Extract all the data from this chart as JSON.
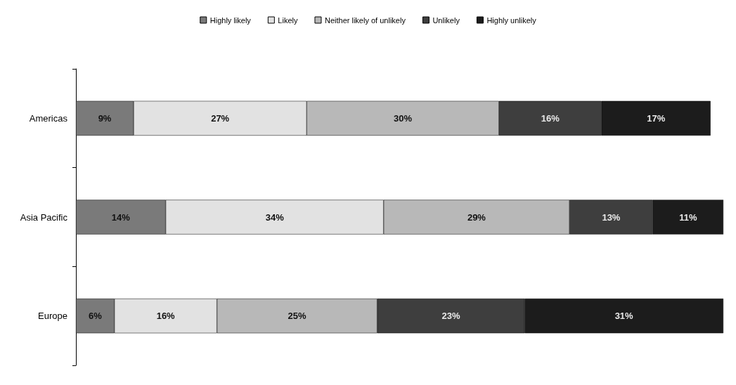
{
  "chart_data": {
    "type": "bar",
    "orientation": "horizontal",
    "stacked": true,
    "legend": "top",
    "categories": [
      "Americas",
      "Asia Pacific",
      "Europe"
    ],
    "series": [
      {
        "name": "Highly likely",
        "color": "#7a7a7a",
        "values": [
          9,
          14,
          6
        ],
        "value_labels": [
          "9%",
          "14%",
          "6%"
        ]
      },
      {
        "name": "Likely",
        "color": "#e2e2e2",
        "values": [
          27,
          34,
          16
        ],
        "value_labels": [
          "27%",
          "34%",
          "16%"
        ]
      },
      {
        "name": "Neither likely of unlikely",
        "color": "#b8b8b8",
        "values": [
          30,
          29,
          25
        ],
        "value_labels": [
          "30%",
          "29%",
          "25%"
        ]
      },
      {
        "name": "Unlikely",
        "color": "#3e3e3e",
        "values": [
          16,
          13,
          23
        ],
        "value_labels": [
          "16%",
          "13%",
          "23%"
        ]
      },
      {
        "name": "Highly unlikely",
        "color": "#1c1c1c",
        "values": [
          17,
          11,
          31
        ],
        "value_labels": [
          "17%",
          "11%",
          "31%"
        ]
      }
    ]
  }
}
